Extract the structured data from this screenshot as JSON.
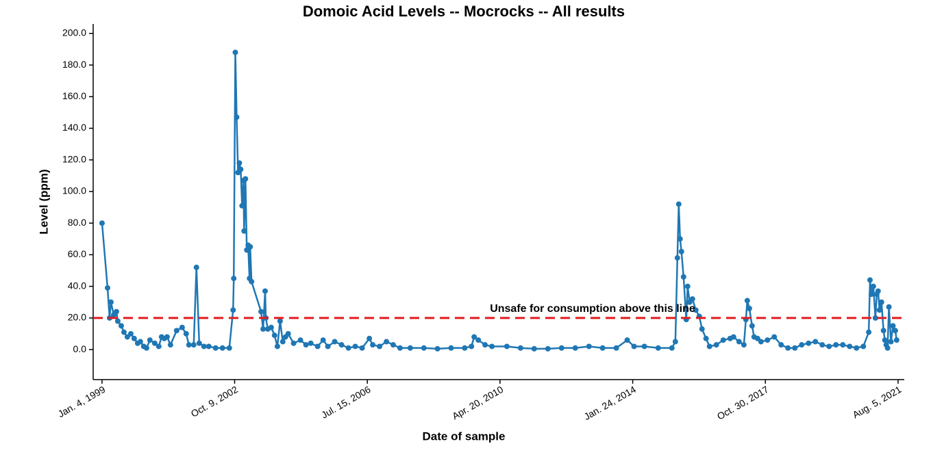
{
  "chart_data": {
    "type": "line",
    "title": "Domoic Acid Levels -- Mocrocks -- All results",
    "x_label": "Date of sample",
    "y_label": "Level (ppm)",
    "annotation": "Unsafe for consumption above this line",
    "threshold": 20,
    "threshold_color": "#e31a1c",
    "xlim": [
      "1998-10-04",
      "2021-10-08"
    ],
    "xticks": [
      {
        "value": "1999-01-04",
        "label": "Jan. 4, 1999"
      },
      {
        "value": "2002-10-09",
        "label": "Oct. 9, 2002"
      },
      {
        "value": "2006-07-15",
        "label": "Jul. 15, 2006"
      },
      {
        "value": "2010-04-20",
        "label": "Apr. 20, 2010"
      },
      {
        "value": "2014-01-24",
        "label": "Jan. 24, 2014"
      },
      {
        "value": "2017-10-30",
        "label": "Oct. 30, 2017"
      },
      {
        "value": "2021-08-05",
        "label": "Aug. 5, 2021"
      }
    ],
    "ylim": [
      -19,
      206
    ],
    "yticks": [
      {
        "value": 0,
        "label": "0.0"
      },
      {
        "value": 20,
        "label": "20.0"
      },
      {
        "value": 40,
        "label": "40.0"
      },
      {
        "value": 60,
        "label": "60.0"
      },
      {
        "value": 80,
        "label": "80.0"
      },
      {
        "value": 100,
        "label": "100.0"
      },
      {
        "value": 120,
        "label": "120.0"
      },
      {
        "value": 140,
        "label": "140.0"
      },
      {
        "value": 160,
        "label": "160.0"
      },
      {
        "value": 180,
        "label": "180.0"
      },
      {
        "value": 200,
        "label": "200.0"
      }
    ],
    "x": [
      "1999-01-04",
      "1999-03-02",
      "1999-03-23",
      "1999-04-06",
      "1999-05-05",
      "1999-06-02",
      "1999-06-16",
      "1999-07-22",
      "1999-08-19",
      "1999-09-23",
      "1999-10-29",
      "1999-12-03",
      "2000-01-08",
      "2000-02-05",
      "2000-03-11",
      "2000-04-09",
      "2000-05-14",
      "2000-07-03",
      "2000-08-14",
      "2000-09-12",
      "2000-10-10",
      "2000-11-08",
      "2000-12-13",
      "2001-02-15",
      "2001-04-13",
      "2001-05-25",
      "2001-06-22",
      "2001-08-11",
      "2001-09-08",
      "2001-10-07",
      "2001-11-25",
      "2002-01-14",
      "2002-03-26",
      "2002-06-05",
      "2002-08-15",
      "2002-09-23",
      "2002-09-30",
      "2002-10-16",
      "2002-10-30",
      "2002-11-13",
      "2002-11-27",
      "2002-12-11",
      "2002-12-25",
      "2003-01-08",
      "2003-01-15",
      "2003-01-29",
      "2003-02-12",
      "2003-02-26",
      "2003-03-12",
      "2003-03-19",
      "2003-04-02",
      "2003-07-10",
      "2003-07-31",
      "2003-08-21",
      "2003-08-28",
      "2003-09-18",
      "2003-10-23",
      "2003-11-27",
      "2003-12-26",
      "2004-01-23",
      "2004-02-20",
      "2004-03-19",
      "2004-04-16",
      "2004-06-11",
      "2004-08-21",
      "2004-10-17",
      "2004-12-06",
      "2005-02-15",
      "2005-04-13",
      "2005-06-01",
      "2005-08-11",
      "2005-10-21",
      "2005-12-31",
      "2006-03-12",
      "2006-05-22",
      "2006-08-05",
      "2006-09-09",
      "2006-11-19",
      "2007-01-29",
      "2007-04-09",
      "2007-06-19",
      "2007-10-03",
      "2008-02-21",
      "2008-07-11",
      "2008-11-29",
      "2009-04-19",
      "2009-06-28",
      "2009-07-26",
      "2009-09-07",
      "2009-11-16",
      "2010-01-26",
      "2010-06-30",
      "2010-11-19",
      "2011-04-09",
      "2011-08-29",
      "2012-01-18",
      "2012-06-08",
      "2012-10-28",
      "2013-03-18",
      "2013-08-07",
      "2013-11-28",
      "2014-02-07",
      "2014-05-25",
      "2014-10-15",
      "2015-03-06",
      "2015-04-11",
      "2015-05-02",
      "2015-05-16",
      "2015-05-30",
      "2015-06-13",
      "2015-07-05",
      "2015-08-02",
      "2015-08-16",
      "2015-09-06",
      "2015-10-05",
      "2015-11-09",
      "2015-12-15",
      "2016-01-12",
      "2016-02-23",
      "2016-03-30",
      "2016-06-09",
      "2016-08-19",
      "2016-10-29",
      "2016-12-04",
      "2017-01-30",
      "2017-03-21",
      "2017-04-11",
      "2017-04-25",
      "2017-05-17",
      "2017-06-14",
      "2017-07-05",
      "2017-08-10",
      "2017-09-14",
      "2017-11-20",
      "2018-01-30",
      "2018-04-11",
      "2018-06-21",
      "2018-08-31",
      "2018-11-10",
      "2019-01-20",
      "2019-04-01",
      "2019-06-11",
      "2019-08-21",
      "2019-10-31",
      "2020-01-10",
      "2020-03-21",
      "2020-05-31",
      "2020-08-10",
      "2020-10-05",
      "2020-10-18",
      "2020-11-01",
      "2020-11-22",
      "2020-12-13",
      "2020-12-27",
      "2021-01-10",
      "2021-01-24",
      "2021-02-14",
      "2021-03-07",
      "2021-03-21",
      "2021-04-04",
      "2021-04-18",
      "2021-05-02",
      "2021-05-23",
      "2021-06-13",
      "2021-07-07",
      "2021-07-21"
    ],
    "series": [
      {
        "color": "#1f77b4",
        "values": [
          80,
          39,
          20,
          30,
          22,
          24,
          18,
          15,
          11,
          8,
          10,
          7,
          4,
          5,
          2,
          1,
          6,
          4,
          2,
          8,
          7,
          8,
          3,
          12,
          14,
          10,
          3,
          3,
          52,
          4,
          2,
          2,
          1,
          1,
          1,
          25,
          45,
          188,
          147,
          112,
          118,
          114,
          91,
          107,
          75,
          108,
          63,
          66,
          45,
          65,
          43,
          24,
          13,
          37,
          20,
          13,
          14,
          9,
          2,
          18,
          5,
          8,
          10,
          4,
          6,
          3,
          4,
          2,
          6,
          2,
          5,
          3,
          1,
          2,
          1,
          7,
          3,
          2,
          5,
          3,
          1,
          1,
          1,
          0.5,
          1,
          1,
          2,
          8,
          6,
          3,
          2,
          2,
          1,
          0.5,
          0.5,
          1,
          1,
          2,
          1,
          1,
          6,
          2,
          2,
          1,
          1,
          5,
          58,
          92,
          70,
          62,
          46,
          19,
          40,
          30,
          32,
          25,
          21,
          13,
          7,
          2,
          3,
          6,
          7,
          8,
          5,
          3,
          19,
          31,
          26,
          15,
          8,
          7,
          5,
          6,
          8,
          3,
          1,
          1,
          3,
          4,
          5,
          3,
          2,
          3,
          3,
          2,
          1,
          2,
          11,
          44,
          35,
          40,
          20,
          35,
          37,
          25,
          30,
          12,
          6,
          3,
          1,
          27,
          5,
          15,
          12,
          6
        ]
      }
    ]
  }
}
